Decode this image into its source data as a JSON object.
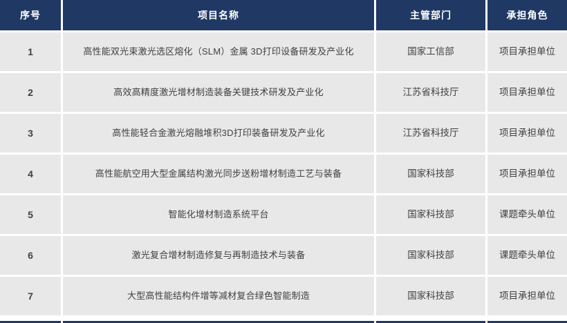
{
  "table": {
    "columns": [
      {
        "key": "index",
        "label": "序号"
      },
      {
        "key": "name",
        "label": "项目名称"
      },
      {
        "key": "dept",
        "label": "主管部门"
      },
      {
        "key": "role",
        "label": "承担角色"
      }
    ],
    "rows": [
      {
        "index": "1",
        "name": "高性能双光束激光选区熔化（SLM）金属 3D打印设备研发及产业化",
        "dept": "国家工信部",
        "role": "项目承担单位"
      },
      {
        "index": "2",
        "name": "高效高精度激光增材制造装备关键技术研发及产业化",
        "dept": "江苏省科技厅",
        "role": "项目承担单位"
      },
      {
        "index": "3",
        "name": "高性能轻合金激光熔融堆积3D打印装备研发及产业化",
        "dept": "江苏省科技厅",
        "role": "项目承担单位"
      },
      {
        "index": "4",
        "name": "高性能航空用大型金属结构激光同步送粉增材制造工艺与装备",
        "dept": "国家科技部",
        "role": "项目承担单位"
      },
      {
        "index": "5",
        "name": "智能化增材制造系统平台",
        "dept": "国家科技部",
        "role": "课题牵头单位"
      },
      {
        "index": "6",
        "name": "激光复合增材制造修复与再制造技术与装备",
        "dept": "国家科技部",
        "role": "课题牵头单位"
      },
      {
        "index": "7",
        "name": "大型高性能结构件增等减材复合绿色智能制造",
        "dept": "国家科技部",
        "role": "项目承担单位"
      }
    ]
  },
  "colors": {
    "header_bg": "#1f3864",
    "header_text": "#ffffff",
    "row_bg": "#e9e8e8",
    "body_text": "#404040",
    "separator": "#ffffff"
  }
}
